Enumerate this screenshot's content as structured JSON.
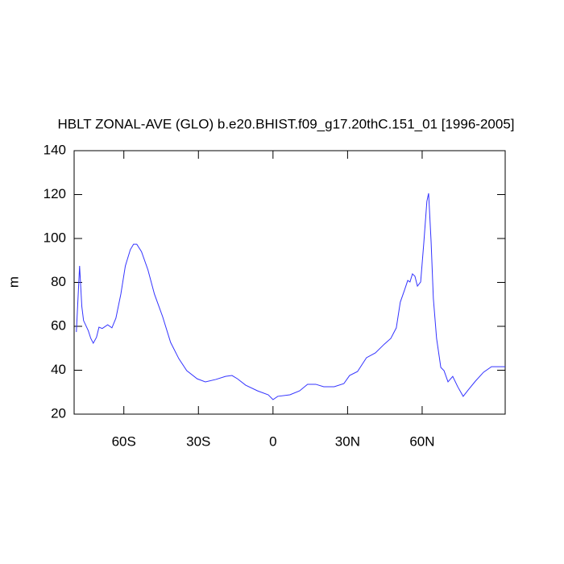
{
  "chart_data": {
    "type": "line",
    "title": "HBLT ZONAL-AVE (GLO) b.e20.BHIST.f09_g17.20thC.151_01 [1996-2005]",
    "y_label": "m",
    "x": [
      -79.1,
      -77.8,
      -76.9,
      -76.2,
      -74.3,
      -73.3,
      -72.3,
      -71,
      -70,
      -68.7,
      -66.5,
      -64.8,
      -63.2,
      -61.2,
      -59.4,
      -57.4,
      -56.1,
      -54.8,
      -52.9,
      -50.3,
      -47.7,
      -44.4,
      -41.2,
      -37.9,
      -34.7,
      -30.5,
      -27.2,
      -23,
      -19.1,
      -16.5,
      -14.3,
      -11,
      -6.2,
      -1.9,
      0,
      1.9,
      6.8,
      10.7,
      13.9,
      17.2,
      20.4,
      24.6,
      28.5,
      30.8,
      34,
      37.6,
      41.2,
      44.8,
      47.4,
      49.6,
      51.2,
      52.9,
      54.2,
      55.1,
      56.1,
      57.1,
      58.1,
      59.4,
      60.7,
      61.9,
      62.6,
      63.6,
      64.5,
      65.8,
      67.5,
      68.8,
      70.4,
      72.3,
      74.3,
      76.5,
      78.8,
      81.4,
      84.7,
      87.9,
      93.4
    ],
    "series": [
      {
        "name": "HBLT",
        "color": "#3333ff",
        "values": [
          57.4,
          87.5,
          69,
          62.6,
          58,
          54.5,
          52.3,
          55,
          59.6,
          59,
          60.7,
          59.3,
          63.7,
          74.7,
          87.5,
          94.9,
          97.4,
          97.4,
          94,
          85.7,
          74.7,
          64.4,
          52.7,
          45.3,
          39.8,
          36.1,
          34.7,
          35.8,
          37.2,
          37.6,
          36.1,
          33.2,
          30.6,
          28.8,
          26.6,
          28.1,
          28.8,
          30.6,
          33.6,
          33.6,
          32.5,
          32.5,
          33.9,
          37.6,
          39.4,
          45.7,
          47.9,
          51.9,
          54.5,
          59.3,
          71,
          76.5,
          80.9,
          80.2,
          83.9,
          82.8,
          78.3,
          80.2,
          98.5,
          116.9,
          120.6,
          98.5,
          72.8,
          54.5,
          41.3,
          39.8,
          34.7,
          37.2,
          32.5,
          28.1,
          31.4,
          35,
          39.1,
          41.6,
          41.6
        ]
      }
    ],
    "xlim": [
      -80,
      93.4
    ],
    "xticks": [
      {
        "value": -60,
        "label": "60S"
      },
      {
        "value": -30,
        "label": "30S"
      },
      0,
      {
        "value": 30,
        "label": "30N"
      },
      {
        "value": 60,
        "label": "60N"
      }
    ],
    "ylim": [
      20,
      140
    ],
    "yticks": [
      20,
      40,
      60,
      80,
      100,
      120,
      140
    ],
    "grid": false
  }
}
